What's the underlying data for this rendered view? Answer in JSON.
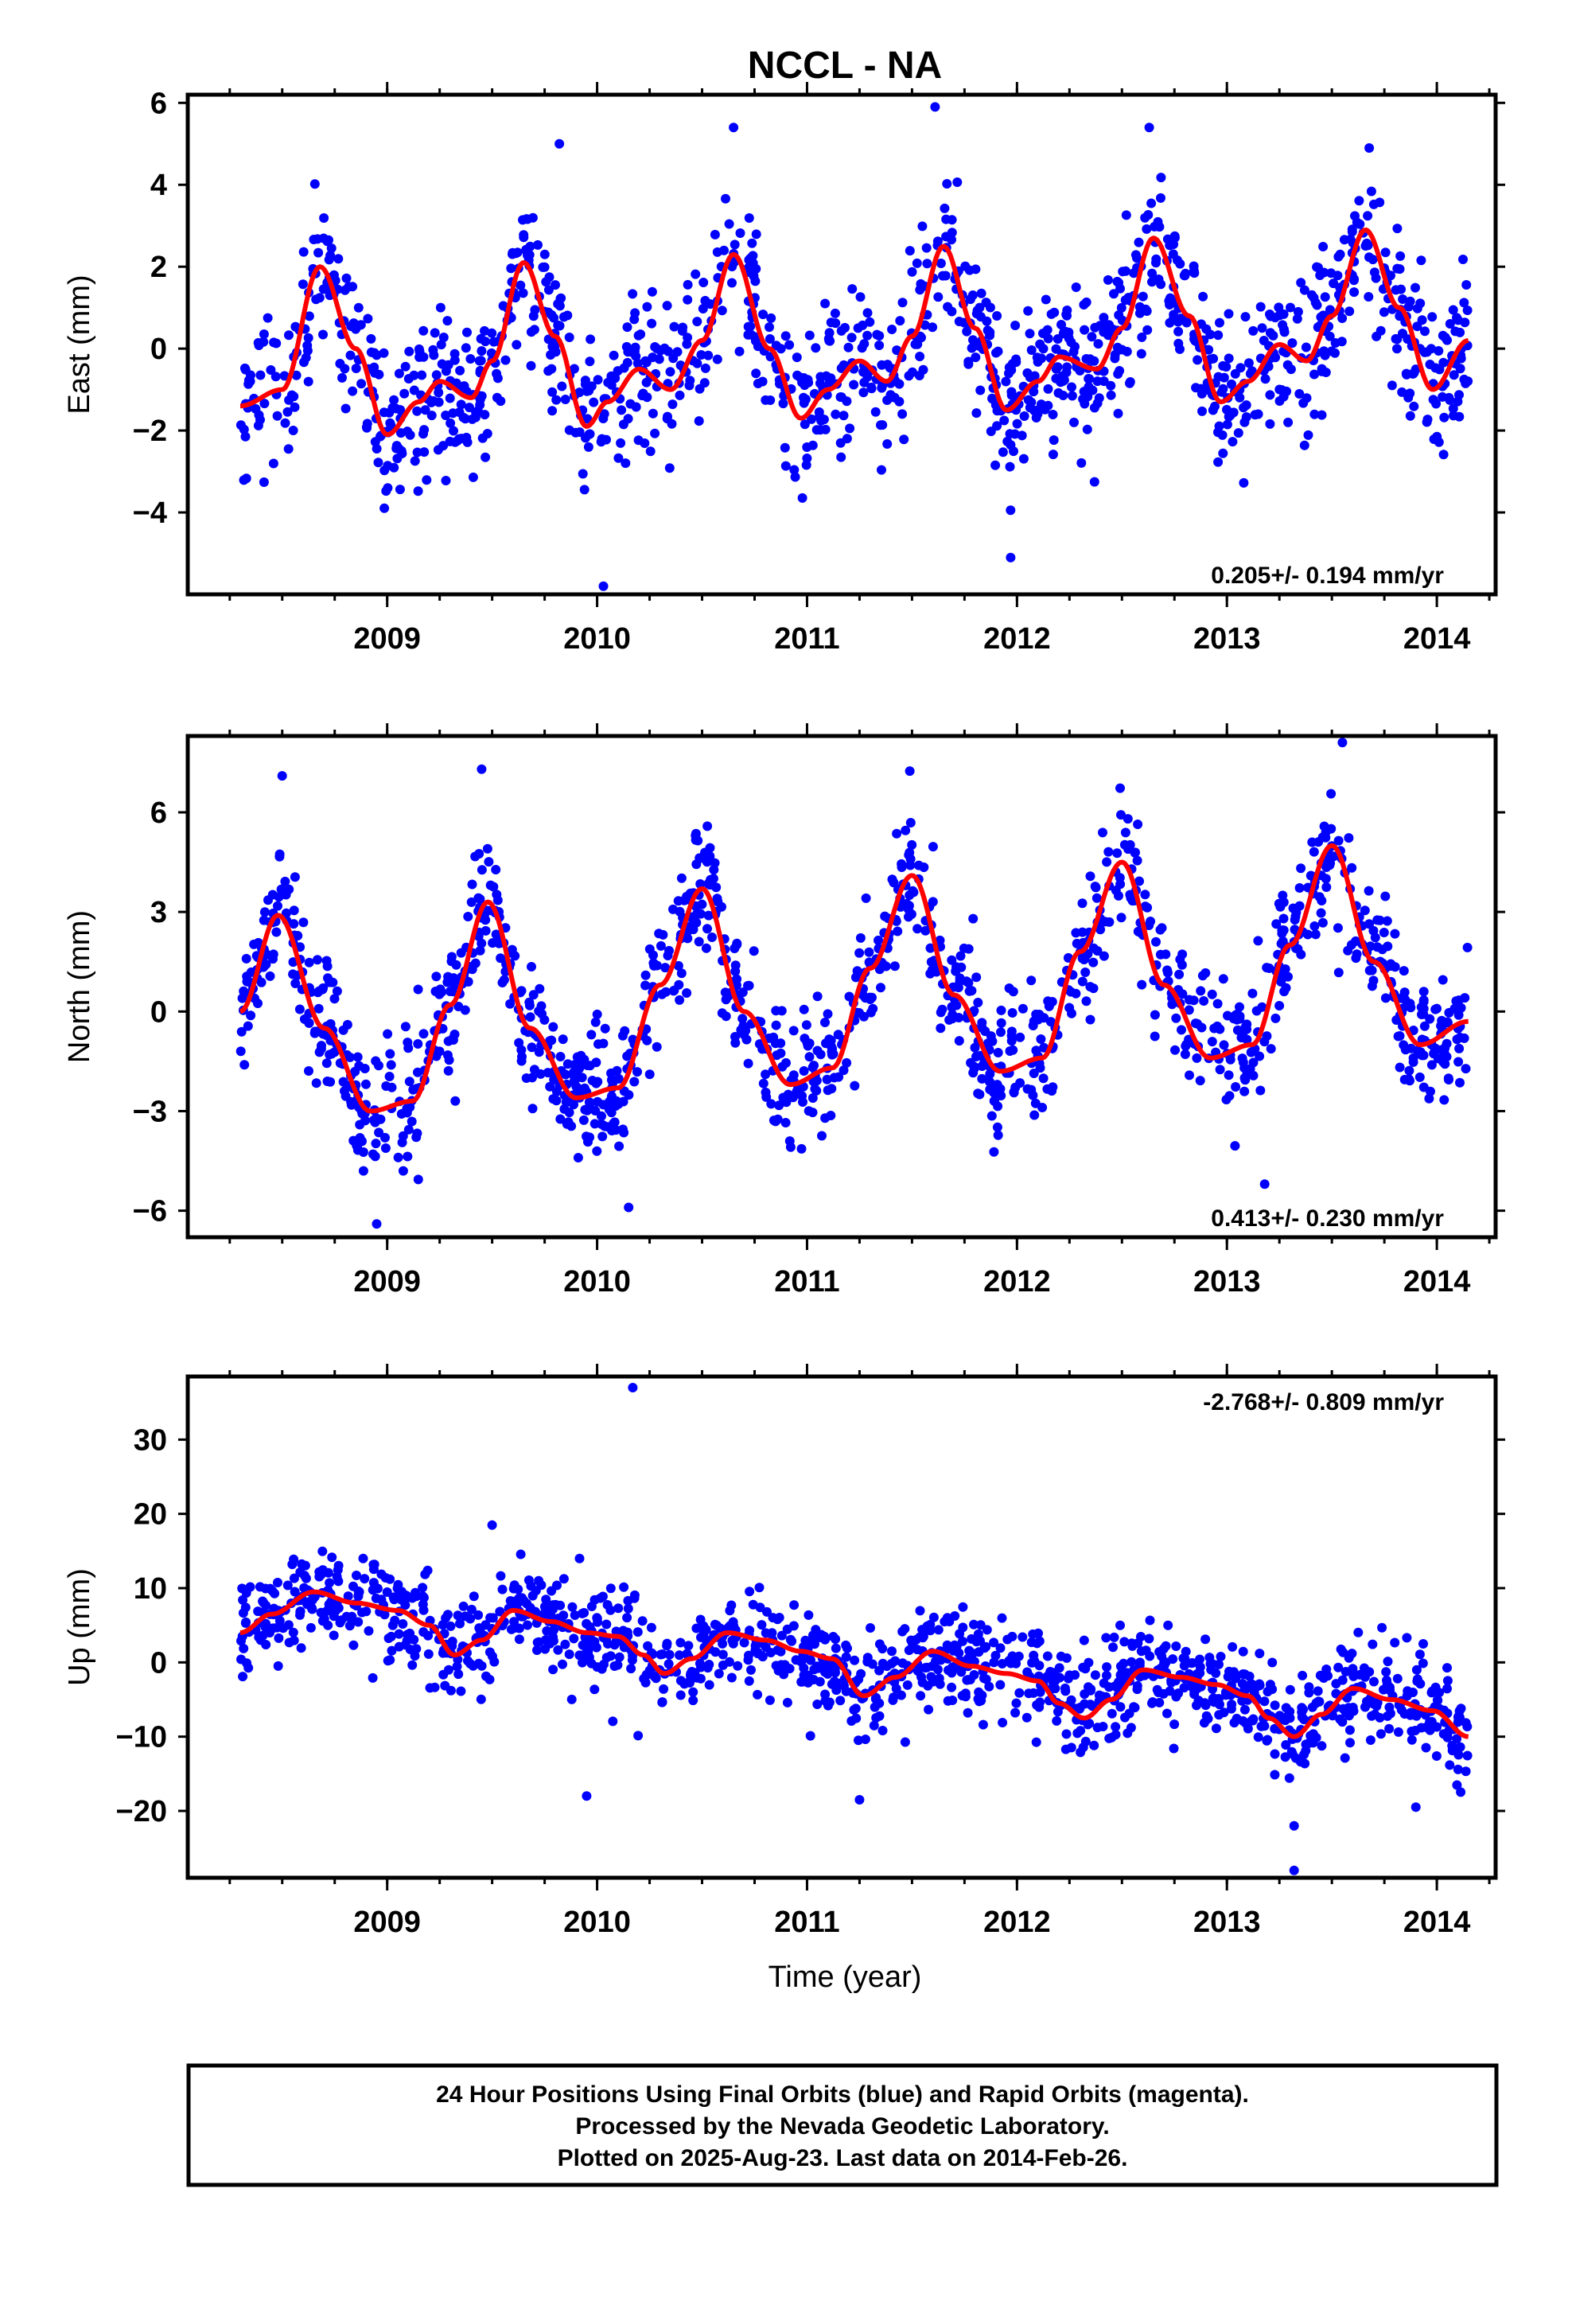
{
  "title": "NCCL - NA",
  "colors": {
    "points": "#0000ff",
    "fit": "#ff0000",
    "frame": "#000000"
  },
  "xaxis": {
    "label": "Time (year)",
    "range": [
      2008.05,
      2014.28
    ],
    "ticks": [
      2009,
      2010,
      2011,
      2012,
      2013,
      2014
    ],
    "tick_labels": [
      "2009",
      "2010",
      "2011",
      "2012",
      "2013",
      "2014"
    ]
  },
  "chart_data": [
    {
      "type": "scatter",
      "id": "east",
      "ylabel": "East (mm)",
      "ylim": [
        -6,
        6.2
      ],
      "yticks": [
        -4,
        -2,
        0,
        2,
        4,
        6
      ],
      "ytick_labels": [
        "−4",
        "−2",
        "0",
        "2",
        "4",
        "6"
      ],
      "rate": "0.205+/- 0.194 mm/yr",
      "rate_position": "bottom-right",
      "data_range_x": [
        2008.3,
        2014.15
      ],
      "fit_x": [
        2008.3,
        2008.5,
        2008.68,
        2008.85,
        2009.0,
        2009.15,
        2009.25,
        2009.4,
        2009.5,
        2009.65,
        2009.8,
        2009.95,
        2010.05,
        2010.2,
        2010.35,
        2010.5,
        2010.65,
        2010.82,
        2010.97,
        2011.1,
        2011.25,
        2011.38,
        2011.5,
        2011.65,
        2011.8,
        2011.95,
        2012.1,
        2012.2,
        2012.38,
        2012.5,
        2012.65,
        2012.82,
        2012.97,
        2013.1,
        2013.25,
        2013.38,
        2013.5,
        2013.66,
        2013.82,
        2013.98,
        2014.15
      ],
      "fit_y": [
        -1.4,
        -1.0,
        2.0,
        0.0,
        -2.1,
        -1.3,
        -0.8,
        -1.2,
        -0.3,
        2.1,
        0.3,
        -1.9,
        -1.3,
        -0.5,
        -1.0,
        0.2,
        2.3,
        0.0,
        -1.7,
        -1.0,
        -0.3,
        -0.8,
        0.3,
        2.5,
        0.5,
        -1.5,
        -0.8,
        -0.2,
        -0.5,
        0.5,
        2.7,
        0.8,
        -1.3,
        -0.8,
        0.1,
        -0.3,
        0.8,
        2.9,
        1.0,
        -1.0,
        0.2
      ],
      "point_count": 1300,
      "scatter_sd": 0.95,
      "outliers": [
        {
          "x": 2010.03,
          "y": -5.8
        },
        {
          "x": 2011.61,
          "y": 5.9
        },
        {
          "x": 2012.63,
          "y": 5.4
        },
        {
          "x": 2009.82,
          "y": 5.0
        },
        {
          "x": 2011.97,
          "y": -5.1
        },
        {
          "x": 2010.65,
          "y": 5.4
        }
      ]
    },
    {
      "type": "scatter",
      "id": "north",
      "ylabel": "North (mm)",
      "ylim": [
        -6.8,
        8.3
      ],
      "yticks": [
        -6,
        -3,
        0,
        3,
        6
      ],
      "ytick_labels": [
        "−6",
        "−3",
        "0",
        "3",
        "6"
      ],
      "rate": "0.413+/- 0.230 mm/yr",
      "rate_position": "bottom-right",
      "data_range_x": [
        2008.3,
        2014.15
      ],
      "fit_x": [
        2008.3,
        2008.48,
        2008.7,
        2008.92,
        2009.12,
        2009.3,
        2009.48,
        2009.68,
        2009.9,
        2010.1,
        2010.3,
        2010.5,
        2010.7,
        2010.92,
        2011.12,
        2011.3,
        2011.5,
        2011.7,
        2011.92,
        2012.12,
        2012.3,
        2012.5,
        2012.7,
        2012.92,
        2013.12,
        2013.3,
        2013.5,
        2013.7,
        2013.92,
        2014.15
      ],
      "fit_y": [
        0.0,
        2.9,
        -0.5,
        -3.0,
        -2.7,
        0.2,
        3.3,
        -0.5,
        -2.6,
        -2.3,
        0.8,
        3.7,
        0.0,
        -2.2,
        -1.7,
        1.3,
        4.1,
        0.5,
        -1.8,
        -1.4,
        1.8,
        4.5,
        0.8,
        -1.4,
        -1.0,
        2.0,
        5.0,
        1.5,
        -1.0,
        -0.3
      ],
      "point_count": 1300,
      "scatter_sd": 1.0,
      "outliers": [
        {
          "x": 2013.55,
          "y": 8.1
        },
        {
          "x": 2009.45,
          "y": 7.3
        },
        {
          "x": 2008.5,
          "y": 7.1
        },
        {
          "x": 2008.95,
          "y": -6.4
        },
        {
          "x": 2013.18,
          "y": -5.2
        },
        {
          "x": 2010.15,
          "y": -5.9
        }
      ]
    },
    {
      "type": "scatter",
      "id": "up",
      "ylabel": "Up (mm)",
      "ylim": [
        -29,
        38.5
      ],
      "yticks": [
        -20,
        -10,
        0,
        10,
        20,
        30
      ],
      "ytick_labels": [
        "−20",
        "−10",
        "0",
        "10",
        "20",
        "30"
      ],
      "rate": "-2.768+/- 0.809 mm/yr",
      "rate_position": "top-right",
      "data_range_x": [
        2008.3,
        2014.15
      ],
      "fit_x": [
        2008.3,
        2008.45,
        2008.65,
        2008.85,
        2009.05,
        2009.2,
        2009.32,
        2009.45,
        2009.6,
        2009.78,
        2009.95,
        2010.1,
        2010.22,
        2010.32,
        2010.45,
        2010.62,
        2010.8,
        2010.97,
        2011.12,
        2011.27,
        2011.42,
        2011.6,
        2011.78,
        2011.95,
        2012.1,
        2012.2,
        2012.32,
        2012.45,
        2012.6,
        2012.78,
        2012.95,
        2013.1,
        2013.2,
        2013.32,
        2013.45,
        2013.6,
        2013.78,
        2013.98,
        2014.15
      ],
      "fit_y": [
        4.0,
        6.5,
        9.5,
        8.0,
        7.0,
        5.0,
        1.0,
        3.0,
        7.0,
        5.5,
        4.0,
        3.5,
        1.0,
        -1.5,
        0.5,
        4.0,
        3.0,
        1.5,
        0.5,
        -4.5,
        -2.0,
        1.5,
        -0.5,
        -1.5,
        -2.5,
        -5.5,
        -7.5,
        -5.0,
        -1.0,
        -2.0,
        -3.0,
        -4.5,
        -7.5,
        -10.0,
        -7.0,
        -3.5,
        -5.0,
        -6.5,
        -10.0
      ],
      "point_count": 1300,
      "scatter_sd": 3.3,
      "outliers": [
        {
          "x": 2010.17,
          "y": 37.0
        },
        {
          "x": 2013.32,
          "y": -28.0
        },
        {
          "x": 2009.95,
          "y": -18.0
        },
        {
          "x": 2011.25,
          "y": -18.5
        },
        {
          "x": 2013.32,
          "y": -22.0
        },
        {
          "x": 2013.9,
          "y": -19.5
        },
        {
          "x": 2009.5,
          "y": 18.5
        }
      ]
    }
  ],
  "caption": {
    "line1": "24 Hour Positions Using Final Orbits (blue) and Rapid Orbits (magenta).",
    "line2": "Processed by the Nevada Geodetic Laboratory.",
    "line3": "Plotted on 2025-Aug-23. Last data on 2014-Feb-26."
  }
}
